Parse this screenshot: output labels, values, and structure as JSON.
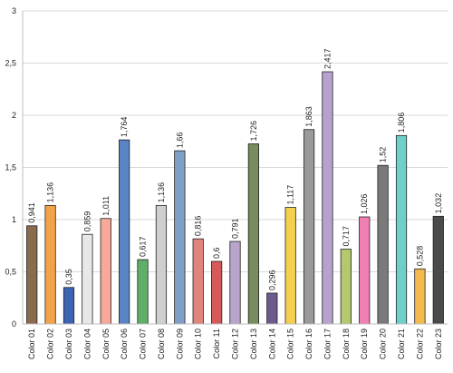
{
  "chart_data": {
    "type": "bar",
    "title": "",
    "xlabel": "",
    "ylabel": "",
    "ylim": [
      0,
      3
    ],
    "yticks": [
      "0",
      "0,5",
      "1",
      "1,5",
      "2",
      "2,5",
      "3"
    ],
    "ytick_values": [
      0,
      0.5,
      1,
      1.5,
      2,
      2.5,
      3
    ],
    "grid": true,
    "legend": "none",
    "categories": [
      "Color 01",
      "Color 02",
      "Color 03",
      "Color 04",
      "Color 05",
      "Color 06",
      "Color 07",
      "Color 08",
      "Color 09",
      "Color 10",
      "Color 11",
      "Color 12",
      "Color 13",
      "Color 14",
      "Color 15",
      "Color 16",
      "Color 17",
      "Color 18",
      "Color 19",
      "Color 20",
      "Color 21",
      "Color 22",
      "Color 23"
    ],
    "values": [
      0.941,
      1.136,
      0.35,
      0.859,
      1.011,
      1.764,
      0.617,
      1.136,
      1.66,
      0.816,
      0.6,
      0.791,
      1.726,
      0.296,
      1.117,
      1.863,
      2.417,
      0.717,
      1.026,
      1.52,
      1.806,
      0.528,
      1.032
    ],
    "value_labels": [
      "0,941",
      "1,136",
      "0,35",
      "0,859",
      "1,011",
      "1,764",
      "0,617",
      "1,136",
      "1,66",
      "0,816",
      "0,6",
      "0,791",
      "1,726",
      "0,296",
      "1,117",
      "1,863",
      "2,417",
      "0,717",
      "1,026",
      "1,52",
      "1,806",
      "0,528",
      "1,032"
    ],
    "colors": [
      "#8b6b4e",
      "#f2a34a",
      "#3d63b2",
      "#e8e8e8",
      "#f7a898",
      "#5a84c4",
      "#5fae6a",
      "#cfcfcf",
      "#7f9fc6",
      "#e0857c",
      "#d65a5a",
      "#b9a4cc",
      "#7a8b5e",
      "#6d5a8c",
      "#f4d04e",
      "#9a9a9a",
      "#b7a2ce",
      "#b4c96e",
      "#f07fb3",
      "#7a7a7a",
      "#6fd0c9",
      "#f2b94e",
      "#4a4a4a"
    ]
  }
}
